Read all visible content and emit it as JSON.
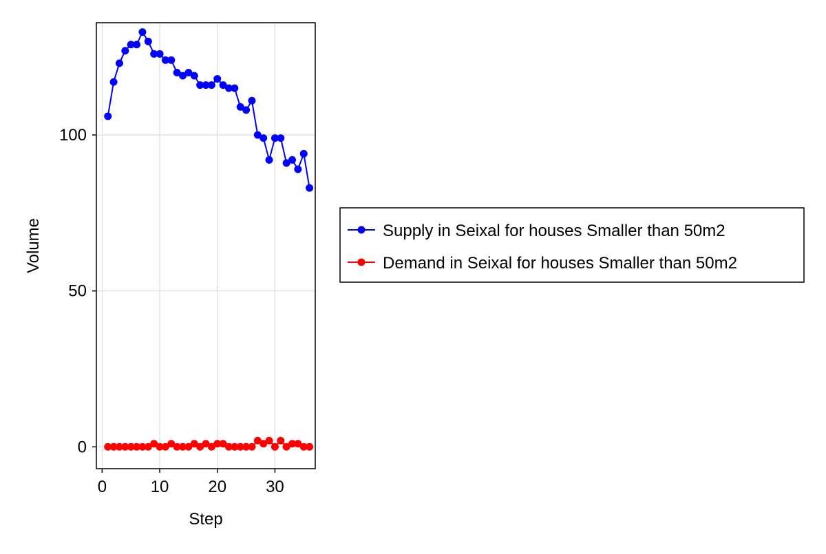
{
  "chart_data": {
    "type": "line",
    "xlabel": "Step",
    "ylabel": "Volume",
    "xlim": [
      -1,
      37
    ],
    "ylim": [
      -7,
      136
    ],
    "xticks": [
      0,
      10,
      20,
      30
    ],
    "yticks": [
      0,
      50,
      100
    ],
    "grid": true,
    "legend_position": "right",
    "series": [
      {
        "name": "Supply in Seixal for houses Smaller than 50m2",
        "color": "#0000ff",
        "x": [
          1,
          2,
          3,
          4,
          5,
          6,
          7,
          8,
          9,
          10,
          11,
          12,
          13,
          14,
          15,
          16,
          17,
          18,
          19,
          20,
          21,
          22,
          23,
          24,
          25,
          26,
          27,
          28,
          29,
          30,
          31,
          32,
          33,
          34,
          35,
          36
        ],
        "y": [
          106,
          117,
          123,
          127,
          129,
          129,
          133,
          130,
          126,
          126,
          124,
          124,
          120,
          119,
          120,
          119,
          116,
          116,
          116,
          118,
          116,
          115,
          115,
          109,
          108,
          111,
          100,
          99,
          92,
          99,
          99,
          91,
          92,
          89,
          94,
          83
        ]
      },
      {
        "name": "Demand in Seixal for houses Smaller than 50m2",
        "color": "#ff0000",
        "x": [
          1,
          2,
          3,
          4,
          5,
          6,
          7,
          8,
          9,
          10,
          11,
          12,
          13,
          14,
          15,
          16,
          17,
          18,
          19,
          20,
          21,
          22,
          23,
          24,
          25,
          26,
          27,
          28,
          29,
          30,
          31,
          32,
          33,
          34,
          35,
          36
        ],
        "y": [
          0,
          0,
          0,
          0,
          0,
          0,
          0,
          0,
          1,
          0,
          0,
          1,
          0,
          0,
          0,
          1,
          0,
          1,
          0,
          1,
          1,
          0,
          0,
          0,
          0,
          0,
          2,
          1,
          2,
          0,
          2,
          0,
          1,
          1,
          0,
          0
        ]
      }
    ]
  }
}
